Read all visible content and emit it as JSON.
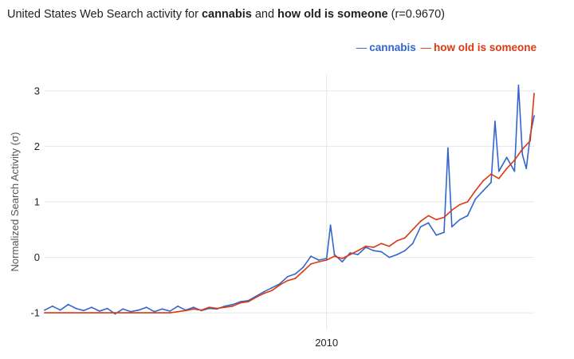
{
  "chart_data": {
    "type": "line",
    "title": {
      "prefix": "United States Web Search activity for ",
      "term1": "cannabis",
      "conjunction": " and ",
      "term2": "how old is someone",
      "suffix": " (r=0.9670)"
    },
    "xlabel": "",
    "ylabel": "Normalized Search Activity (σ)",
    "x_range": [
      "2004-01",
      "2014-06"
    ],
    "x_ticks": [
      {
        "date": "2010-01",
        "label": "2010"
      }
    ],
    "ylim": [
      -1.3,
      3.3
    ],
    "y_ticks": [
      -1,
      0,
      1,
      2,
      3
    ],
    "grid": true,
    "legend_position": "top-right",
    "series": [
      {
        "name": "cannabis",
        "color": "#3366cc",
        "points": [
          [
            "2004-01",
            -0.95
          ],
          [
            "2004-03",
            -0.88
          ],
          [
            "2004-05",
            -0.95
          ],
          [
            "2004-07",
            -0.85
          ],
          [
            "2004-09",
            -0.92
          ],
          [
            "2004-11",
            -0.96
          ],
          [
            "2005-01",
            -0.9
          ],
          [
            "2005-03",
            -0.97
          ],
          [
            "2005-05",
            -0.92
          ],
          [
            "2005-07",
            -1.02
          ],
          [
            "2005-09",
            -0.93
          ],
          [
            "2005-11",
            -0.98
          ],
          [
            "2006-01",
            -0.95
          ],
          [
            "2006-03",
            -0.9
          ],
          [
            "2006-05",
            -0.98
          ],
          [
            "2006-07",
            -0.93
          ],
          [
            "2006-09",
            -0.97
          ],
          [
            "2006-11",
            -0.88
          ],
          [
            "2007-01",
            -0.95
          ],
          [
            "2007-03",
            -0.9
          ],
          [
            "2007-05",
            -0.96
          ],
          [
            "2007-07",
            -0.92
          ],
          [
            "2007-09",
            -0.93
          ],
          [
            "2007-11",
            -0.88
          ],
          [
            "2008-01",
            -0.85
          ],
          [
            "2008-03",
            -0.8
          ],
          [
            "2008-05",
            -0.78
          ],
          [
            "2008-07",
            -0.7
          ],
          [
            "2008-09",
            -0.62
          ],
          [
            "2008-11",
            -0.55
          ],
          [
            "2009-01",
            -0.48
          ],
          [
            "2009-03",
            -0.35
          ],
          [
            "2009-05",
            -0.3
          ],
          [
            "2009-07",
            -0.18
          ],
          [
            "2009-09",
            0.02
          ],
          [
            "2009-11",
            -0.05
          ],
          [
            "2010-01",
            -0.02
          ],
          [
            "2010-02",
            0.58
          ],
          [
            "2010-03",
            0.05
          ],
          [
            "2010-05",
            -0.08
          ],
          [
            "2010-07",
            0.08
          ],
          [
            "2010-09",
            0.05
          ],
          [
            "2010-11",
            0.18
          ],
          [
            "2011-01",
            0.12
          ],
          [
            "2011-03",
            0.1
          ],
          [
            "2011-05",
            0.0
          ],
          [
            "2011-07",
            0.05
          ],
          [
            "2011-09",
            0.12
          ],
          [
            "2011-11",
            0.25
          ],
          [
            "2012-01",
            0.55
          ],
          [
            "2012-03",
            0.62
          ],
          [
            "2012-05",
            0.4
          ],
          [
            "2012-07",
            0.45
          ],
          [
            "2012-08",
            1.97
          ],
          [
            "2012-09",
            0.55
          ],
          [
            "2012-11",
            0.68
          ],
          [
            "2013-01",
            0.75
          ],
          [
            "2013-03",
            1.05
          ],
          [
            "2013-05",
            1.2
          ],
          [
            "2013-07",
            1.35
          ],
          [
            "2013-08",
            2.45
          ],
          [
            "2013-09",
            1.55
          ],
          [
            "2013-11",
            1.8
          ],
          [
            "2014-01",
            1.55
          ],
          [
            "2014-02",
            3.1
          ],
          [
            "2014-03",
            1.85
          ],
          [
            "2014-04",
            1.6
          ],
          [
            "2014-05",
            2.2
          ],
          [
            "2014-06",
            2.55
          ]
        ]
      },
      {
        "name": "how old is someone",
        "color": "#dc3912",
        "points": [
          [
            "2004-01",
            -1.0
          ],
          [
            "2005-01",
            -1.0
          ],
          [
            "2006-01",
            -1.0
          ],
          [
            "2006-09",
            -1.0
          ],
          [
            "2006-11",
            -0.98
          ],
          [
            "2007-01",
            -0.96
          ],
          [
            "2007-03",
            -0.93
          ],
          [
            "2007-05",
            -0.95
          ],
          [
            "2007-07",
            -0.9
          ],
          [
            "2007-09",
            -0.92
          ],
          [
            "2007-11",
            -0.9
          ],
          [
            "2008-01",
            -0.88
          ],
          [
            "2008-03",
            -0.82
          ],
          [
            "2008-05",
            -0.8
          ],
          [
            "2008-07",
            -0.72
          ],
          [
            "2008-09",
            -0.65
          ],
          [
            "2008-11",
            -0.6
          ],
          [
            "2009-01",
            -0.5
          ],
          [
            "2009-03",
            -0.42
          ],
          [
            "2009-05",
            -0.38
          ],
          [
            "2009-07",
            -0.25
          ],
          [
            "2009-09",
            -0.12
          ],
          [
            "2009-11",
            -0.08
          ],
          [
            "2010-01",
            -0.05
          ],
          [
            "2010-03",
            0.02
          ],
          [
            "2010-05",
            -0.02
          ],
          [
            "2010-07",
            0.05
          ],
          [
            "2010-09",
            0.12
          ],
          [
            "2010-11",
            0.2
          ],
          [
            "2011-01",
            0.18
          ],
          [
            "2011-03",
            0.25
          ],
          [
            "2011-05",
            0.2
          ],
          [
            "2011-07",
            0.3
          ],
          [
            "2011-09",
            0.35
          ],
          [
            "2011-11",
            0.5
          ],
          [
            "2012-01",
            0.65
          ],
          [
            "2012-03",
            0.75
          ],
          [
            "2012-05",
            0.68
          ],
          [
            "2012-07",
            0.72
          ],
          [
            "2012-09",
            0.85
          ],
          [
            "2012-11",
            0.95
          ],
          [
            "2013-01",
            1.0
          ],
          [
            "2013-03",
            1.2
          ],
          [
            "2013-05",
            1.38
          ],
          [
            "2013-07",
            1.5
          ],
          [
            "2013-09",
            1.42
          ],
          [
            "2013-11",
            1.6
          ],
          [
            "2014-01",
            1.75
          ],
          [
            "2014-03",
            1.95
          ],
          [
            "2014-05",
            2.1
          ],
          [
            "2014-06",
            2.95
          ]
        ]
      }
    ]
  }
}
